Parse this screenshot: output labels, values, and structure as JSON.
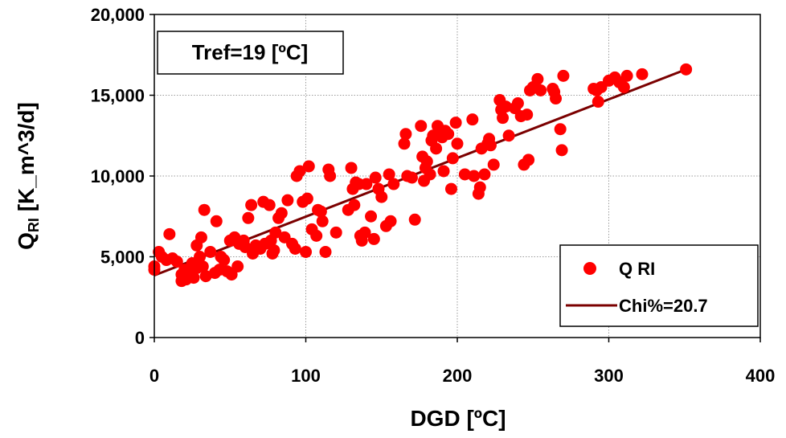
{
  "chart_data": {
    "type": "scatter",
    "xlabel": "DGD [ºC]",
    "ylabel_main": "Q",
    "ylabel_sub": "RI",
    "ylabel_rest": " [K_m^3/d]",
    "xlim": [
      0,
      400
    ],
    "ylim": [
      0,
      20000
    ],
    "x_ticks": [
      0,
      100,
      200,
      300,
      400
    ],
    "y_ticks": [
      0,
      5000,
      10000,
      15000,
      20000
    ],
    "x_tick_labels": [
      "0",
      "100",
      "200",
      "300",
      "400"
    ],
    "y_tick_labels": [
      "0",
      "5,000",
      "10,000",
      "15,000",
      "20,000"
    ],
    "grid": true,
    "annotation": "Tref=19 [ºC]",
    "legend_position": "bottom-right",
    "series": [
      {
        "name": "Q RI",
        "kind": "scatter",
        "color": "#ff0000",
        "points": [
          [
            0,
            4200
          ],
          [
            0,
            4400
          ],
          [
            3,
            5300
          ],
          [
            5,
            5000
          ],
          [
            8,
            4800
          ],
          [
            10,
            6400
          ],
          [
            12,
            4900
          ],
          [
            15,
            4700
          ],
          [
            18,
            3500
          ],
          [
            18,
            3900
          ],
          [
            20,
            4200
          ],
          [
            21,
            3600
          ],
          [
            22,
            3800
          ],
          [
            23,
            4000
          ],
          [
            25,
            4600
          ],
          [
            26,
            3700
          ],
          [
            28,
            4300
          ],
          [
            28,
            5700
          ],
          [
            30,
            5000
          ],
          [
            31,
            6200
          ],
          [
            32,
            4400
          ],
          [
            33,
            7900
          ],
          [
            34,
            3800
          ],
          [
            37,
            5300
          ],
          [
            40,
            4000
          ],
          [
            41,
            7200
          ],
          [
            43,
            4200
          ],
          [
            44,
            5000
          ],
          [
            46,
            4800
          ],
          [
            48,
            4100
          ],
          [
            50,
            6000
          ],
          [
            51,
            3900
          ],
          [
            53,
            6200
          ],
          [
            55,
            4400
          ],
          [
            56,
            5800
          ],
          [
            59,
            6000
          ],
          [
            60,
            5600
          ],
          [
            62,
            7400
          ],
          [
            64,
            8200
          ],
          [
            65,
            5200
          ],
          [
            67,
            5700
          ],
          [
            70,
            5500
          ],
          [
            72,
            8400
          ],
          [
            73,
            5800
          ],
          [
            76,
            8200
          ],
          [
            77,
            6000
          ],
          [
            78,
            5200
          ],
          [
            79,
            5400
          ],
          [
            80,
            6500
          ],
          [
            82,
            7400
          ],
          [
            84,
            7700
          ],
          [
            86,
            6200
          ],
          [
            88,
            8500
          ],
          [
            91,
            5800
          ],
          [
            93,
            5500
          ],
          [
            94,
            10000
          ],
          [
            96,
            10300
          ],
          [
            98,
            8400
          ],
          [
            100,
            5300
          ],
          [
            101,
            8600
          ],
          [
            102,
            10600
          ],
          [
            104,
            6700
          ],
          [
            107,
            6300
          ],
          [
            108,
            7900
          ],
          [
            110,
            7800
          ],
          [
            111,
            7200
          ],
          [
            113,
            5300
          ],
          [
            115,
            10400
          ],
          [
            116,
            10000
          ],
          [
            120,
            6500
          ],
          [
            128,
            7900
          ],
          [
            130,
            10500
          ],
          [
            131,
            9200
          ],
          [
            132,
            8200
          ],
          [
            133,
            9600
          ],
          [
            135,
            9500
          ],
          [
            136,
            6300
          ],
          [
            137,
            6000
          ],
          [
            139,
            6500
          ],
          [
            140,
            9500
          ],
          [
            143,
            7500
          ],
          [
            145,
            6100
          ],
          [
            146,
            9900
          ],
          [
            148,
            9200
          ],
          [
            150,
            8700
          ],
          [
            153,
            6900
          ],
          [
            155,
            10100
          ],
          [
            156,
            7200
          ],
          [
            158,
            9500
          ],
          [
            165,
            12000
          ],
          [
            166,
            12600
          ],
          [
            167,
            10000
          ],
          [
            170,
            9900
          ],
          [
            172,
            7300
          ],
          [
            176,
            13100
          ],
          [
            177,
            11200
          ],
          [
            178,
            9700
          ],
          [
            179,
            10500
          ],
          [
            180,
            10900
          ],
          [
            182,
            10100
          ],
          [
            183,
            12200
          ],
          [
            184,
            12500
          ],
          [
            186,
            11700
          ],
          [
            187,
            13100
          ],
          [
            188,
            12800
          ],
          [
            190,
            12400
          ],
          [
            191,
            10300
          ],
          [
            192,
            12800
          ],
          [
            194,
            12600
          ],
          [
            196,
            9200
          ],
          [
            197,
            11100
          ],
          [
            199,
            13300
          ],
          [
            200,
            12000
          ],
          [
            205,
            10100
          ],
          [
            210,
            13500
          ],
          [
            211,
            10000
          ],
          [
            214,
            8900
          ],
          [
            215,
            9300
          ],
          [
            216,
            11700
          ],
          [
            218,
            10100
          ],
          [
            220,
            12000
          ],
          [
            221,
            12300
          ],
          [
            222,
            11900
          ],
          [
            224,
            10700
          ],
          [
            228,
            14700
          ],
          [
            229,
            14100
          ],
          [
            230,
            13600
          ],
          [
            232,
            14300
          ],
          [
            234,
            12500
          ],
          [
            238,
            14200
          ],
          [
            240,
            14500
          ],
          [
            242,
            13700
          ],
          [
            244,
            10700
          ],
          [
            246,
            13800
          ],
          [
            247,
            11000
          ],
          [
            248,
            15300
          ],
          [
            250,
            15500
          ],
          [
            253,
            16000
          ],
          [
            255,
            15300
          ],
          [
            263,
            15400
          ],
          [
            264,
            15200
          ],
          [
            265,
            14800
          ],
          [
            268,
            12900
          ],
          [
            269,
            11600
          ],
          [
            270,
            16200
          ],
          [
            290,
            15400
          ],
          [
            292,
            15300
          ],
          [
            293,
            14600
          ],
          [
            295,
            15500
          ],
          [
            300,
            15900
          ],
          [
            304,
            16100
          ],
          [
            307,
            15800
          ],
          [
            310,
            15500
          ],
          [
            312,
            16200
          ],
          [
            322,
            16300
          ],
          [
            351,
            16600
          ]
        ]
      },
      {
        "name": "Chi%=20.7",
        "kind": "line",
        "color": "#7b0000",
        "points": [
          [
            0,
            3850
          ],
          [
            351,
            16600
          ]
        ]
      }
    ]
  }
}
